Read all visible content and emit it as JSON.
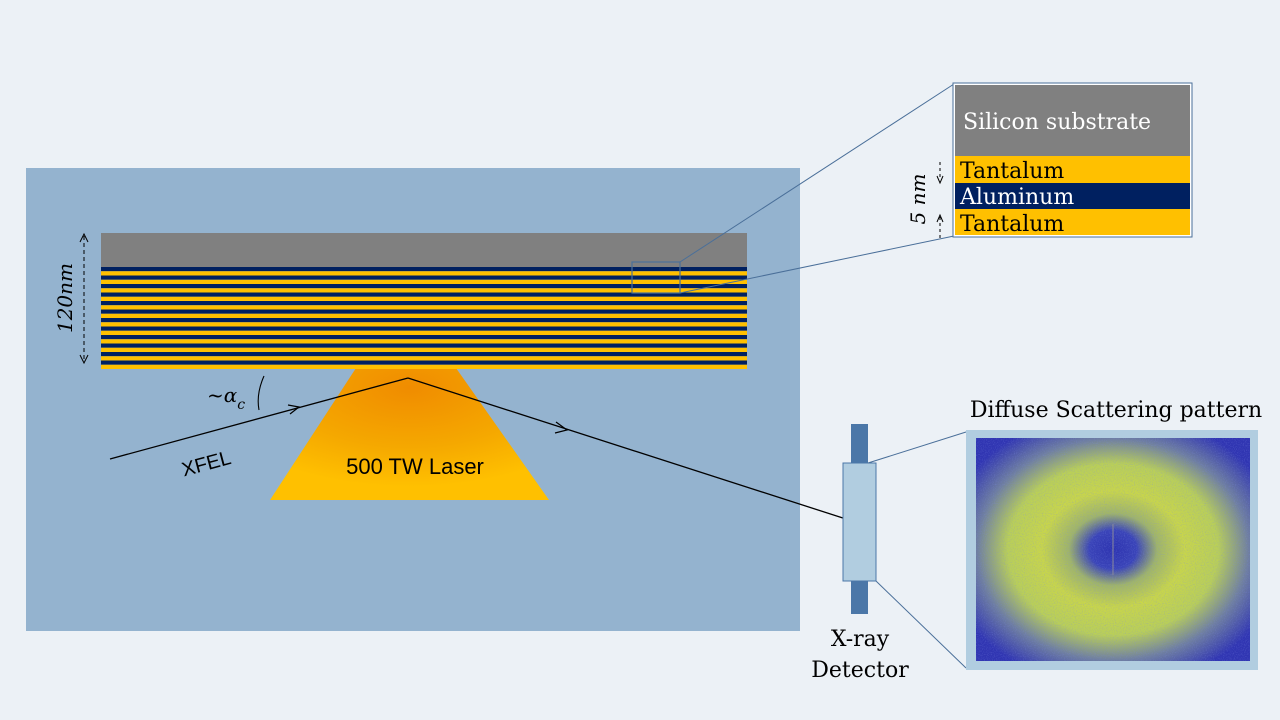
{
  "diagram": {
    "thickness_label": "120nm",
    "angle_label": "~α",
    "angle_subscript": "c",
    "beam_label": "XFEL",
    "laser_label": "500 TW Laser",
    "inset": {
      "substrate_label": "Silicon substrate",
      "layers": [
        "Tantalum",
        "Aluminum",
        "Tantalum"
      ],
      "period_label": "5 nm"
    },
    "detector_label_line1": "X-ray",
    "detector_label_line2": "Detector",
    "pattern_title": "Diffuse Scattering pattern"
  },
  "colors": {
    "background": "#ecf1f6",
    "panel": "#94b3cf",
    "substrate": "#808080",
    "tantalum": "#ffc000",
    "aluminum": "#002060",
    "laser_center": "#f08c00",
    "laser_edge": "#ffc000",
    "detector_bar": "#4b77a8",
    "detector_body": "#b1cde0",
    "pattern_blue": "#2d33b0",
    "pattern_yellow": "#c8d64a"
  }
}
